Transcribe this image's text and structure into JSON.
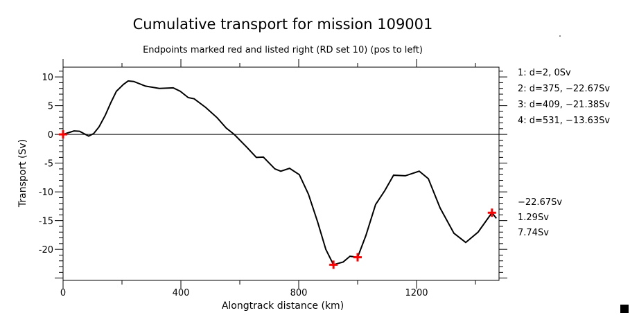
{
  "chart_data": {
    "type": "line",
    "title": "Cumulative transport for mission 109001",
    "subtitle": "Endpoints marked red and listed right (RD set 10) (pos to left)",
    "xlabel": "Alongtrack distance (km)",
    "ylabel": "Transport (Sv)",
    "xlim": [
      0,
      1480
    ],
    "ylim": [
      -25.4,
      11.7
    ],
    "xticks": [
      0,
      400,
      800,
      1200
    ],
    "xtick_labels": [
      "0",
      "400",
      "800",
      "1200"
    ],
    "yticks": [
      10,
      5,
      0,
      -5,
      -10,
      -15,
      -20
    ],
    "ytick_labels": [
      "10",
      "5",
      "0",
      "-5",
      "-10",
      "-15",
      "-20"
    ],
    "grid": false,
    "series": [
      {
        "name": "cumulative transport",
        "color": "#000000",
        "x": [
          0,
          37,
          56,
          87,
          104,
          122,
          143,
          162,
          181,
          205,
          221,
          240,
          280,
          327,
          374,
          398,
          425,
          445,
          484,
          523,
          554,
          581,
          625,
          656,
          680,
          719,
          739,
          769,
          802,
          833,
          864,
          892,
          918,
          951,
          974,
          1000,
          1028,
          1061,
          1092,
          1122,
          1162,
          1209,
          1240,
          1280,
          1327,
          1367,
          1409,
          1456,
          1471
        ],
        "y": [
          0,
          0.6,
          0.55,
          -0.3,
          0.15,
          1.3,
          3.3,
          5.5,
          7.5,
          8.7,
          9.3,
          9.2,
          8.4,
          8.0,
          8.1,
          7.5,
          6.4,
          6.2,
          4.7,
          2.9,
          1.1,
          0,
          -2.3,
          -4.0,
          -3.95,
          -6.0,
          -6.4,
          -5.9,
          -7.0,
          -10.4,
          -15.2,
          -20,
          -22.67,
          -22.2,
          -21.2,
          -21.38,
          -17.6,
          -12.2,
          -9.8,
          -7.1,
          -7.2,
          -6.4,
          -7.7,
          -12.8,
          -17.2,
          -18.8,
          -17.0,
          -13.63,
          -14.6
        ]
      }
    ],
    "markers": {
      "color": "#ff0000",
      "x": [
        0,
        918,
        1000,
        1456
      ],
      "y": [
        0,
        -22.67,
        -21.38,
        -13.63
      ]
    },
    "endpoint_list": [
      "1: d=2, 0Sv",
      "2: d=375, −22.67Sv",
      "3: d=409, −21.38Sv",
      "4: d=531, −13.63Sv"
    ],
    "summary_values": [
      "−22.67Sv",
      "1.29Sv",
      "7.74Sv"
    ]
  }
}
